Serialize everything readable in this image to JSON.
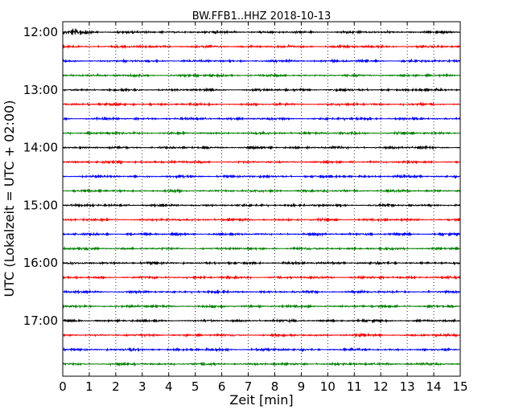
{
  "chart_data": {
    "type": "line",
    "title": "BW.FFB1..HHZ 2018-10-13",
    "xlabel": "Zeit  [min]",
    "ylabel": "UTC (Lokalzeit = UTC + 02:00)",
    "xlim": [
      0,
      15
    ],
    "x_ticks": [
      "0",
      "1",
      "2",
      "3",
      "4",
      "5",
      "6",
      "7",
      "8",
      "9",
      "10",
      "11",
      "12",
      "13",
      "14",
      "15"
    ],
    "y_tick_labels": [
      "12:00",
      "13:00",
      "14:00",
      "15:00",
      "16:00",
      "17:00"
    ],
    "grid": "vertical-dotted",
    "trace_colors": [
      "#000000",
      "#ff0000",
      "#0000ff",
      "#008000"
    ],
    "trace_count": 24,
    "trace_start_times": [
      "12:00",
      "12:15",
      "12:30",
      "12:45",
      "13:00",
      "13:15",
      "13:30",
      "13:45",
      "14:00",
      "14:15",
      "14:30",
      "14:45",
      "15:00",
      "15:15",
      "15:30",
      "15:45",
      "16:00",
      "16:15",
      "16:30",
      "16:45",
      "17:00",
      "17:15",
      "17:30",
      "17:45"
    ]
  }
}
